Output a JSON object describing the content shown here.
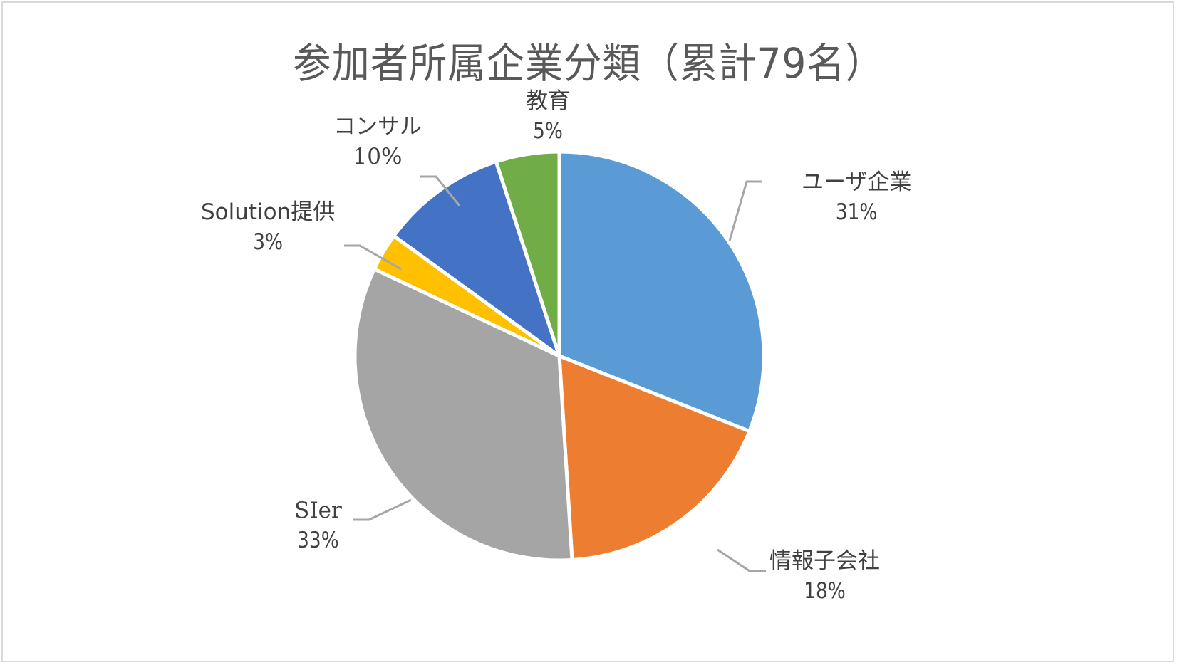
{
  "chart_data": {
    "type": "pie",
    "title": "参加者所属企業分類（累計79名）",
    "total_participants": 79,
    "start_angle_deg": 0,
    "direction": "clockwise",
    "slices": [
      {
        "label": "ユーザ企業",
        "value": 31,
        "pct_label": "31%",
        "color": "#5B9BD5"
      },
      {
        "label": "情報子会社",
        "value": 18,
        "pct_label": "18%",
        "color": "#ED7D31"
      },
      {
        "label": "SIer",
        "value": 33,
        "pct_label": "33%",
        "color": "#A5A5A5"
      },
      {
        "label": "Solution提供",
        "value": 3,
        "pct_label": "3%",
        "color": "#FFC000"
      },
      {
        "label": "コンサル",
        "value": 10,
        "pct_label": "10%",
        "color": "#4472C4"
      },
      {
        "label": "教育",
        "value": 5,
        "pct_label": "5%",
        "color": "#70AD47"
      }
    ],
    "data_labels": "category name and percentage, outside with leader lines",
    "legend": "none",
    "slice_border_color": "#FFFFFF",
    "leader_line_color": "#A6A6A6"
  },
  "title": "参加者所属企業分類（累計79名）",
  "labels": {
    "user": {
      "name": "ユーザ企業",
      "pct": "31%"
    },
    "subsidiary": {
      "name": "情報子会社",
      "pct": "18%"
    },
    "sier": {
      "name": "SIer",
      "pct": "33%"
    },
    "solution": {
      "name": "Solution提供",
      "pct": "3%"
    },
    "consul": {
      "name": "コンサル",
      "pct": "10%"
    },
    "edu": {
      "name": "教育",
      "pct": "5%"
    }
  }
}
